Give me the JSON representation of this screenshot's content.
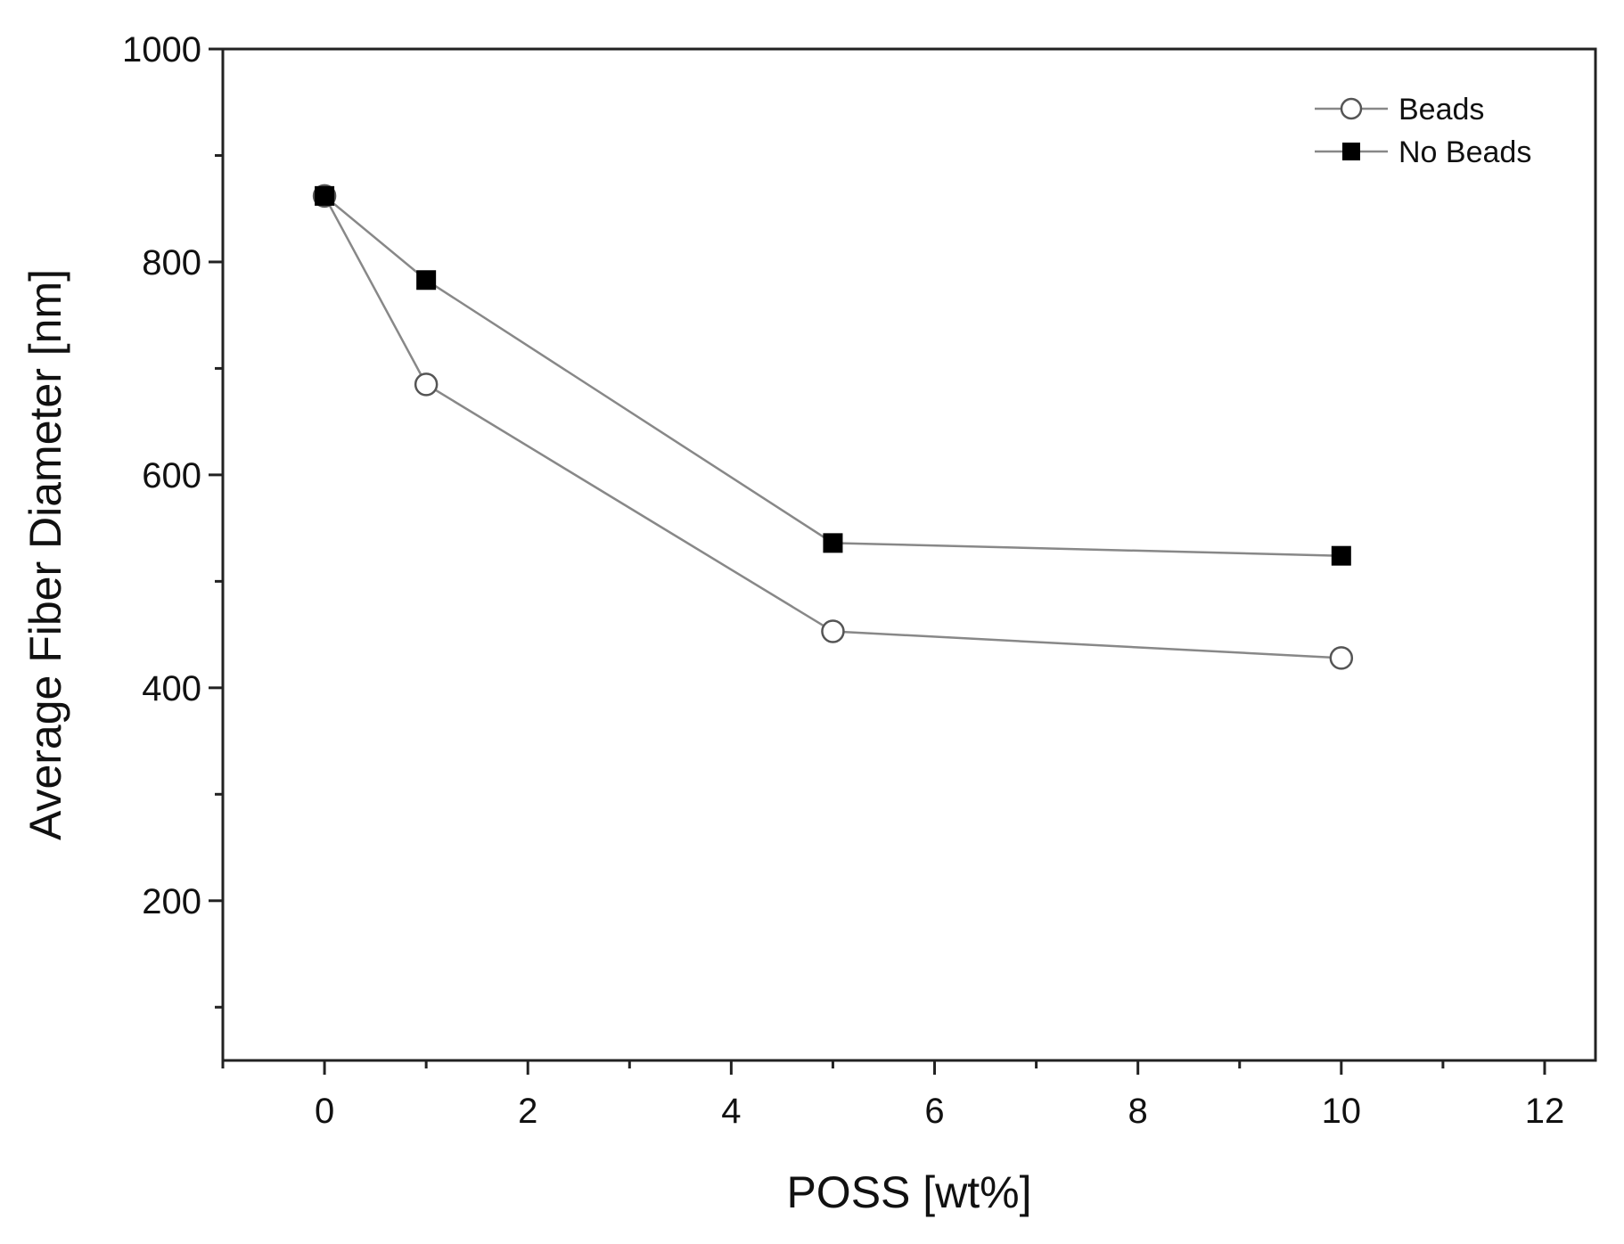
{
  "chart_data": {
    "type": "line",
    "title": "",
    "xlabel": "POSS [wt%]",
    "ylabel": "Average Fiber Diameter [nm]",
    "xlim": [
      -1,
      12.5
    ],
    "ylim": [
      50,
      1000
    ],
    "xticks": [
      0,
      2,
      4,
      6,
      8,
      10,
      12
    ],
    "yticks": [
      200,
      400,
      600,
      800,
      1000
    ],
    "grid": false,
    "legend_position": "top-right",
    "series": [
      {
        "name": "Beads",
        "marker": "open-circle",
        "color": "#888888",
        "x": [
          0,
          1,
          5,
          10
        ],
        "y": [
          862,
          685,
          453,
          428
        ]
      },
      {
        "name": "No Beads",
        "marker": "filled-square",
        "color": "#888888",
        "x": [
          0,
          1,
          5,
          10
        ],
        "y": [
          862,
          783,
          536,
          524
        ]
      }
    ]
  }
}
